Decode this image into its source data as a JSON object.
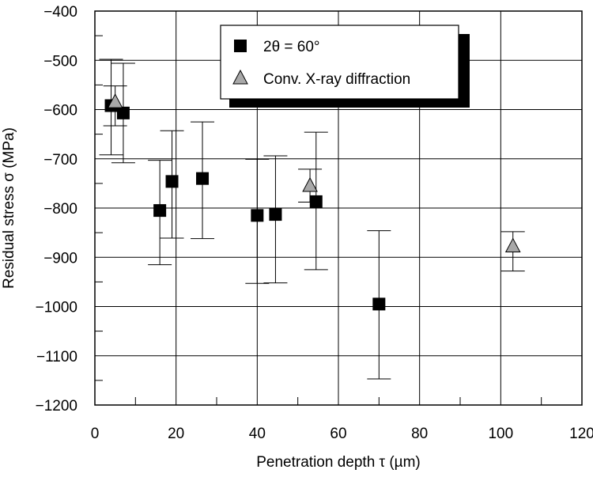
{
  "chart_data": {
    "type": "scatter",
    "xlabel": "Penetration depth τ (µm)",
    "ylabel": "Residual stress σ (MPa)",
    "xlim": [
      0,
      120
    ],
    "ylim": [
      -1200,
      -400
    ],
    "x_ticks": [
      "0",
      "20",
      "40",
      "60",
      "80",
      "100",
      "120"
    ],
    "y_ticks": [
      "−400",
      "−500",
      "−600",
      "−700",
      "−800",
      "−900",
      "−1000",
      "−1100",
      "−1200"
    ],
    "grid": true,
    "legend_position": "top-center",
    "series": [
      {
        "name": "2θ = 60°",
        "marker": "square",
        "color": "#000000",
        "points": [
          {
            "x": 4,
            "y": -592,
            "err_low": -692,
            "err_high": -498
          },
          {
            "x": 7,
            "y": -607,
            "err_low": -708,
            "err_high": -506
          },
          {
            "x": 16,
            "y": -805,
            "err_low": -915,
            "err_high": -703
          },
          {
            "x": 19,
            "y": -746,
            "err_low": -861,
            "err_high": -643
          },
          {
            "x": 26.5,
            "y": -740,
            "err_low": -862,
            "err_high": -625
          },
          {
            "x": 40,
            "y": -815,
            "err_low": -953,
            "err_high": -701
          },
          {
            "x": 44.5,
            "y": -813,
            "err_low": -952,
            "err_high": -694
          },
          {
            "x": 54.5,
            "y": -787,
            "err_low": -925,
            "err_high": -646
          },
          {
            "x": 70,
            "y": -995,
            "err_low": -1147,
            "err_high": -846
          }
        ]
      },
      {
        "name": "Conv. X-ray diffraction",
        "marker": "triangle",
        "color": "#a8a8a8",
        "points": [
          {
            "x": 5,
            "y": -585,
            "err_low": -633,
            "err_high": -552
          },
          {
            "x": 53,
            "y": -755,
            "err_low": -788,
            "err_high": -721
          },
          {
            "x": 103,
            "y": -878,
            "err_low": -928,
            "err_high": -848
          }
        ]
      }
    ]
  }
}
